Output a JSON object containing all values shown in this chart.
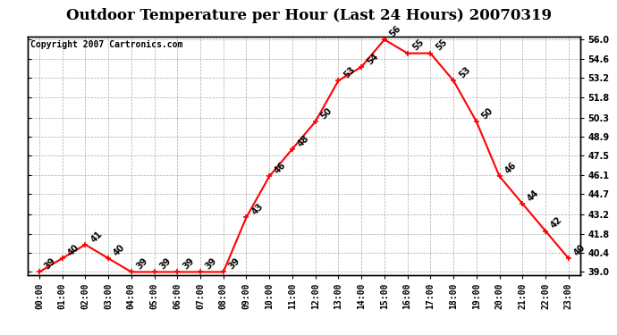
{
  "title": "Outdoor Temperature per Hour (Last 24 Hours) 20070319",
  "copyright": "Copyright 2007 Cartronics.com",
  "hours": [
    "00:00",
    "01:00",
    "02:00",
    "03:00",
    "04:00",
    "05:00",
    "06:00",
    "07:00",
    "08:00",
    "09:00",
    "10:00",
    "11:00",
    "12:00",
    "13:00",
    "14:00",
    "15:00",
    "16:00",
    "17:00",
    "18:00",
    "19:00",
    "20:00",
    "21:00",
    "22:00",
    "23:00"
  ],
  "temps": [
    39,
    40,
    41,
    40,
    39,
    39,
    39,
    39,
    39,
    43,
    46,
    48,
    50,
    53,
    54,
    56,
    55,
    55,
    53,
    50,
    46,
    44,
    42,
    40
  ],
  "line_color": "#ff0000",
  "bg_color": "#ffffff",
  "grid_color": "#aaaaaa",
  "ylim_min": 39.0,
  "ylim_max": 56.0,
  "yticks": [
    39.0,
    40.4,
    41.8,
    43.2,
    44.7,
    46.1,
    47.5,
    48.9,
    50.3,
    51.8,
    53.2,
    54.6,
    56.0
  ],
  "title_fontsize": 12,
  "copyright_fontsize": 7,
  "label_fontsize": 7,
  "tick_fontsize": 7
}
